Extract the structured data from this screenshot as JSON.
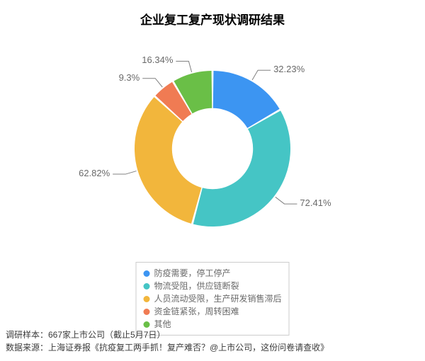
{
  "chart": {
    "type": "donut",
    "title": "企业复工复产现状调研结果",
    "title_fontsize": 17,
    "background_color": "#ffffff",
    "donut_inner_ratio": 0.52,
    "gap_deg": 1.5,
    "label_fontsize": 13,
    "label_color": "#696969",
    "leader_color": "#808080",
    "slices": [
      {
        "name": "防疫需要，停工停产",
        "value": 32.23,
        "label": "32.23%",
        "color": "#3c95f2"
      },
      {
        "name": "物流受阻，供应链断裂",
        "value": 72.41,
        "label": "72.41%",
        "color": "#45c5c5"
      },
      {
        "name": "人员流动受限，生产研发销售滞后",
        "value": 62.82,
        "label": "62.82%",
        "color": "#f2b63c"
      },
      {
        "name": "资金链紧张，周转困难",
        "value": 9.3,
        "label": "9.3%",
        "color": "#f07b53"
      },
      {
        "name": "其他",
        "value": 16.34,
        "label": "16.34%",
        "color": "#6abf47"
      }
    ],
    "legend": {
      "border_color": "#cccccc",
      "fontsize": 12,
      "text_color": "#696969",
      "swatch_shape": "circle"
    }
  },
  "footer": {
    "sample_line": "调研样本：667家上市公司（截止5月7日）",
    "source_line": "数据来源：上海证券报《抗疫复工两手抓！复产难否？@上市公司，这份问卷请查收》",
    "fontsize": 12,
    "color": "#3a3a3a"
  }
}
